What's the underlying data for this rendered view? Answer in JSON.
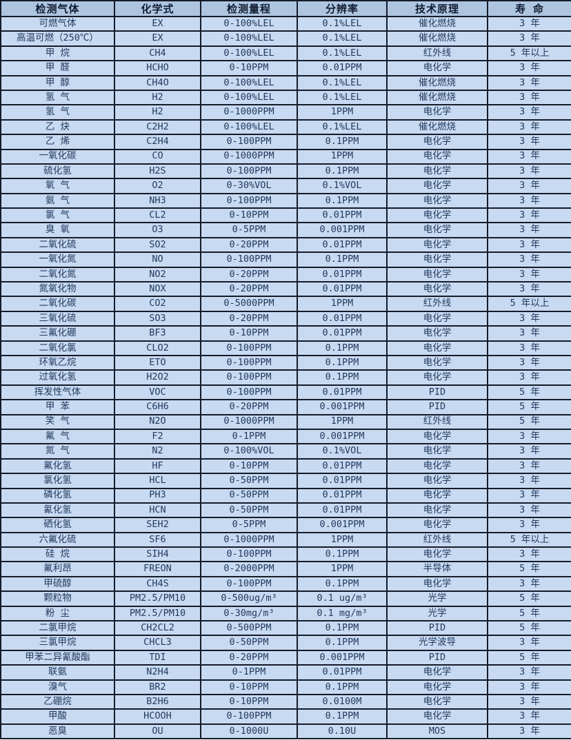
{
  "colors": {
    "header_bg": "#aec5e0",
    "row_bg": "#c8daf1",
    "border": "#141a28",
    "text": "#223a5e"
  },
  "table": {
    "columns": [
      "检测气体",
      "化学式",
      "检测量程",
      "分辨率",
      "技术原理",
      "寿 命"
    ],
    "column_keys": [
      "gas",
      "formula",
      "range",
      "resolution",
      "principle",
      "lifespan"
    ],
    "rows": [
      [
        "可燃气体",
        "EX",
        "0-100%LEL",
        "0.1%LEL",
        "催化燃烧",
        "3 年"
      ],
      [
        "高温可燃（250℃）",
        "EX",
        "0-100%LEL",
        "0.1%LEL",
        "催化燃烧",
        "3 年"
      ],
      [
        "甲 烷",
        "CH4",
        "0-100%LEL",
        "0.1%LEL",
        "红外线",
        "5 年以上"
      ],
      [
        "甲 醛",
        "HCHO",
        "0-10PPM",
        "0.01PPM",
        "电化学",
        "3 年"
      ],
      [
        "甲 醇",
        "CH4O",
        "0-100%LEL",
        "0.1%LEL",
        "催化燃烧",
        "3 年"
      ],
      [
        "氢 气",
        "H2",
        "0-100%LEL",
        "0.1%LEL",
        "催化燃烧",
        "3 年"
      ],
      [
        "氢 气",
        "H2",
        "0-1000PPM",
        "1PPM",
        "电化学",
        "3 年"
      ],
      [
        "乙 炔",
        "C2H2",
        "0-100%LEL",
        "0.1%LEL",
        "催化燃烧",
        "3 年"
      ],
      [
        "乙 烯",
        "C2H4",
        "0-100PPM",
        "0.1PPM",
        "电化学",
        "3 年"
      ],
      [
        "一氧化碳",
        "CO",
        "0-1000PPM",
        "1PPM",
        "电化学",
        "3 年"
      ],
      [
        "硫化氢",
        "H2S",
        "0-100PPM",
        "0.1PPM",
        "电化学",
        "3 年"
      ],
      [
        "氧 气",
        "O2",
        "0-30%VOL",
        "0.1%VOL",
        "电化学",
        "3 年"
      ],
      [
        "氨 气",
        "NH3",
        "0-100PPM",
        "0.1PPM",
        "电化学",
        "3 年"
      ],
      [
        "氯 气",
        "CL2",
        "0-10PPM",
        "0.01PPM",
        "电化学",
        "3 年"
      ],
      [
        "臭 氧",
        "O3",
        "0-5PPM",
        "0.001PPM",
        "电化学",
        "3 年"
      ],
      [
        "二氧化硫",
        "SO2",
        "0-20PPM",
        "0.01PPM",
        "电化学",
        "3 年"
      ],
      [
        "一氧化氮",
        "NO",
        "0-100PPM",
        "0.1PPM",
        "电化学",
        "3 年"
      ],
      [
        "二氧化氮",
        "NO2",
        "0-20PPM",
        "0.01PPM",
        "电化学",
        "3 年"
      ],
      [
        "氮氧化物",
        "NOX",
        "0-20PPM",
        "0.01PPM",
        "电化学",
        "3 年"
      ],
      [
        "二氧化碳",
        "CO2",
        "0-5000PPM",
        "1PPM",
        "红外线",
        "5 年以上"
      ],
      [
        "三氧化硫",
        "SO3",
        "0-20PPM",
        "0.01PPM",
        "电化学",
        "3 年"
      ],
      [
        "三氟化硼",
        "BF3",
        "0-10PPM",
        "0.01PPM",
        "电化学",
        "3 年"
      ],
      [
        "二氧化氯",
        "CLO2",
        "0-100PPM",
        "0.1PPM",
        "电化学",
        "3 年"
      ],
      [
        "环氧乙烷",
        "ETO",
        "0-100PPM",
        "0.1PPM",
        "电化学",
        "3 年"
      ],
      [
        "过氧化氢",
        "H2O2",
        "0-100PPM",
        "0.1PPM",
        "电化学",
        "3 年"
      ],
      [
        "挥发性气体",
        "VOC",
        "0-100PPM",
        "0.01PPM",
        "PID",
        "5 年"
      ],
      [
        "甲 苯",
        "C6H6",
        "0-20PPM",
        "0.001PPM",
        "PID",
        "5 年"
      ],
      [
        "笑 气",
        "N2O",
        "0-1000PPM",
        "1PPM",
        "红外线",
        "5 年"
      ],
      [
        "氟 气",
        "F2",
        "0-1PPM",
        "0.001PPM",
        "电化学",
        "3 年"
      ],
      [
        "氮 气",
        "N2",
        "0-100%VOL",
        "0.1%VOL",
        "电化学",
        "3 年"
      ],
      [
        "氟化氢",
        "HF",
        "0-10PPM",
        "0.01PPM",
        "电化学",
        "3 年"
      ],
      [
        "氯化氢",
        "HCL",
        "0-50PPM",
        "0.01PPM",
        "电化学",
        "3 年"
      ],
      [
        "磷化氢",
        "PH3",
        "0-50PPM",
        "0.01PPM",
        "电化学",
        "3 年"
      ],
      [
        "氰化氢",
        "HCN",
        "0-50PPM",
        "0.01PPM",
        "电化学",
        "3 年"
      ],
      [
        "硒化氢",
        "SEH2",
        "0-5PPM",
        "0.001PPM",
        "电化学",
        "3 年"
      ],
      [
        "六氟化硫",
        "SF6",
        "0-1000PPM",
        "1PPM",
        "红外线",
        "5 年以上"
      ],
      [
        "硅 烷",
        "SIH4",
        "0-100PPM",
        "0.1PPM",
        "电化学",
        "3 年"
      ],
      [
        "氟利昂",
        "FREON",
        "0-2000PPM",
        "1PPM",
        "半导体",
        "5 年"
      ],
      [
        "甲硫醇",
        "CH4S",
        "0-100PPM",
        "0.1PPM",
        "电化学",
        "3 年"
      ],
      [
        "颗粒物",
        "PM2.5/PM10",
        "0-500ug/m³",
        "0.1 ug/m³",
        "光学",
        "5 年"
      ],
      [
        "粉 尘",
        "PM2.5/PM10",
        "0-30mg/m³",
        "0.1 mg/m³",
        "光学",
        "5 年"
      ],
      [
        "二氯甲烷",
        "CH2CL2",
        "0-500PPM",
        "0.1PPM",
        "PID",
        "5 年"
      ],
      [
        "三氯甲烷",
        "CHCL3",
        "0-50PPM",
        "0.1PPM",
        "光学波导",
        "3 年"
      ],
      [
        "甲苯二异氰酸酯",
        "TDI",
        "0-20PPM",
        "0.001PPM",
        "PID",
        "5 年"
      ],
      [
        "联氨",
        "N2H4",
        "0-1PPM",
        "0.01PPM",
        "电化学",
        "3 年"
      ],
      [
        "溴气",
        "BR2",
        "0-10PPM",
        "0.1PPM",
        "电化学",
        "3 年"
      ],
      [
        "乙硼烷",
        "B2H6",
        "0-10PPM",
        "0.0100M",
        "电化学",
        "3 年"
      ],
      [
        "甲酸",
        "HCOOH",
        "0-100PPM",
        "0.1PPM",
        "电化学",
        "3 年"
      ],
      [
        "恶臭",
        "OU",
        "0-1000U",
        "0.10U",
        "MOS",
        "3 年"
      ]
    ]
  }
}
